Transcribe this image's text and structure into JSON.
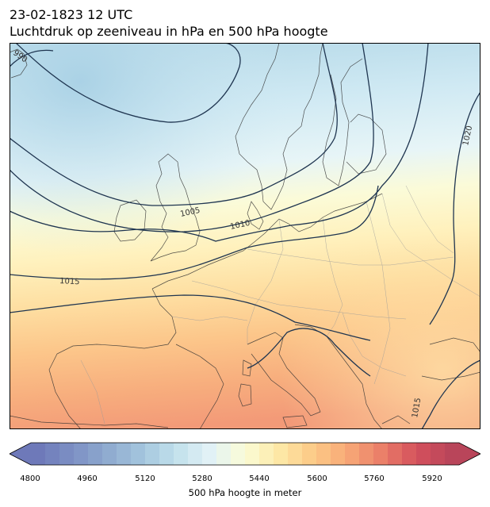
{
  "title": {
    "line1": "23-02-1823 12 UTC",
    "line2": "Luchtdruk op zeeniveau in hPa en 500 hPa hoogte"
  },
  "map": {
    "region": "Europe",
    "isobar_labels": [
      "990",
      "1005",
      "1010",
      "1015",
      "1020",
      "1015"
    ],
    "isobar_color": "#1f3550",
    "coastline_color": "#333333",
    "border_color": "#9a9a9a"
  },
  "colorbar": {
    "title": "500 hPa hoogte in meter",
    "tick_labels": [
      "4800",
      "4960",
      "5120",
      "5280",
      "5440",
      "5600",
      "5760",
      "5920"
    ],
    "min": 4800,
    "max": 6000,
    "step": 40,
    "colors_low_to_high": [
      "#6e79b9",
      "#7c90c4",
      "#8faacf",
      "#a3c5de",
      "#c2e1ec",
      "#e2f2f6",
      "#fbfcd6",
      "#fde8a6",
      "#fcc986",
      "#f7a776",
      "#ea7d68",
      "#d3505c",
      "#b9455a"
    ]
  }
}
